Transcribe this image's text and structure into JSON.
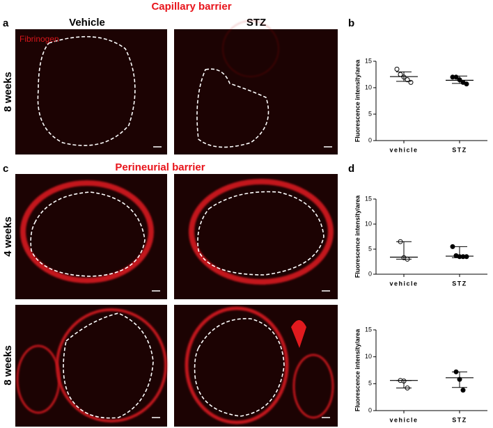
{
  "titles": [
    "Capillary barrier",
    "Perineurial barrier"
  ],
  "panels": [
    "a",
    "b",
    "c",
    "d"
  ],
  "columns": [
    "Vehicle",
    "STZ"
  ],
  "rows": [
    "8 weeks",
    "4 weeks",
    "8 weeks"
  ],
  "stain": "Fibrinogen",
  "chart_data": [
    {
      "type": "dotplot",
      "ylabel": "Fluorescence intensity/area",
      "categories": [
        "vehicle",
        "STZ"
      ],
      "markers": [
        "open",
        "filled"
      ],
      "color": "#000000",
      "values": [
        [
          13.5,
          12.5,
          12,
          11.5,
          11
        ],
        [
          12,
          12,
          11.5,
          11,
          10.7
        ]
      ],
      "summary": [
        {
          "center": 12.1,
          "low": 11.2,
          "high": 13
        },
        {
          "center": 11.4,
          "low": 10.8,
          "high": 12.2
        }
      ],
      "ylim": [
        0,
        15
      ],
      "yticks": [
        0,
        5,
        10,
        15
      ]
    },
    {
      "type": "dotplot",
      "ylabel": "Fluorescence intensity/area",
      "categories": [
        "vehicle",
        "STZ"
      ],
      "markers": [
        "open",
        "filled"
      ],
      "color": "#000000",
      "values": [
        [
          6.5,
          3.3,
          3
        ],
        [
          5.5,
          3.7,
          3.5,
          3.5,
          3.5
        ]
      ],
      "summary": [
        {
          "center": 3.4,
          "low": 3,
          "high": 6.5
        },
        {
          "center": 3.6,
          "low": 3.3,
          "high": 5.5
        }
      ],
      "ylim": [
        0,
        15
      ],
      "yticks": [
        0,
        5,
        10,
        15
      ]
    },
    {
      "type": "dotplot",
      "ylabel": "Fluorescence intensity/area",
      "categories": [
        "vehicle",
        "STZ"
      ],
      "markers": [
        "open",
        "filled"
      ],
      "color": "#000000",
      "values": [
        [
          5.6,
          5.5,
          4.2
        ],
        [
          7.2,
          5.8,
          3.8
        ]
      ],
      "summary": [
        {
          "center": 5.6,
          "low": 4.2,
          "high": 5.6
        },
        {
          "center": 6.1,
          "low": 4.3,
          "high": 7.2
        }
      ],
      "ylim": [
        0,
        15
      ],
      "yticks": [
        0,
        5,
        10,
        15
      ]
    }
  ]
}
